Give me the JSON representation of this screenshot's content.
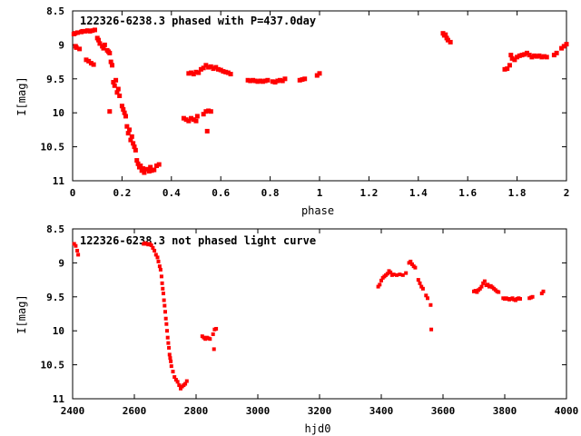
{
  "chart_data": [
    {
      "type": "scatter",
      "title": "122326-6238.3 phased with P=437.0day",
      "xlabel": "phase",
      "ylabel": "I[mag]",
      "xlim": [
        0,
        2
      ],
      "ylim": [
        11,
        8.5
      ],
      "y_inverted": true,
      "grid": false,
      "legend": "none",
      "marker_color": "#ff0000",
      "xticks": [
        "0",
        "0.2",
        "0.4",
        "0.6",
        "0.8",
        "1",
        "1.2",
        "1.4",
        "1.6",
        "1.8",
        "2"
      ],
      "yticks": [
        "8.5",
        "9",
        "9.5",
        "10",
        "10.5",
        "11"
      ],
      "points": [
        [
          0.005,
          8.84
        ],
        [
          0.01,
          8.83
        ],
        [
          0.012,
          9.02
        ],
        [
          0.015,
          9.04
        ],
        [
          0.02,
          8.82
        ],
        [
          0.028,
          9.06
        ],
        [
          0.035,
          8.81
        ],
        [
          0.04,
          8.8
        ],
        [
          0.05,
          8.8
        ],
        [
          0.055,
          9.22
        ],
        [
          0.06,
          8.79
        ],
        [
          0.065,
          9.24
        ],
        [
          0.07,
          8.8
        ],
        [
          0.075,
          9.27
        ],
        [
          0.08,
          8.79
        ],
        [
          0.085,
          9.29
        ],
        [
          0.09,
          8.78
        ],
        [
          0.1,
          8.9
        ],
        [
          0.105,
          8.93
        ],
        [
          0.11,
          8.98
        ],
        [
          0.12,
          9.02
        ],
        [
          0.125,
          9.05
        ],
        [
          0.13,
          9.0
        ],
        [
          0.14,
          9.08
        ],
        [
          0.145,
          9.1
        ],
        [
          0.15,
          9.12
        ],
        [
          0.155,
          9.25
        ],
        [
          0.16,
          9.3
        ],
        [
          0.15,
          9.98
        ],
        [
          0.165,
          9.55
        ],
        [
          0.17,
          9.6
        ],
        [
          0.175,
          9.52
        ],
        [
          0.18,
          9.7
        ],
        [
          0.185,
          9.65
        ],
        [
          0.19,
          9.75
        ],
        [
          0.2,
          9.9
        ],
        [
          0.205,
          9.95
        ],
        [
          0.21,
          10.0
        ],
        [
          0.215,
          10.05
        ],
        [
          0.22,
          10.2
        ],
        [
          0.225,
          10.3
        ],
        [
          0.23,
          10.25
        ],
        [
          0.235,
          10.4
        ],
        [
          0.24,
          10.35
        ],
        [
          0.245,
          10.45
        ],
        [
          0.25,
          10.5
        ],
        [
          0.255,
          10.55
        ],
        [
          0.26,
          10.7
        ],
        [
          0.265,
          10.75
        ],
        [
          0.27,
          10.8
        ],
        [
          0.275,
          10.78
        ],
        [
          0.28,
          10.85
        ],
        [
          0.285,
          10.82
        ],
        [
          0.29,
          10.88
        ],
        [
          0.3,
          10.83
        ],
        [
          0.31,
          10.86
        ],
        [
          0.315,
          10.8
        ],
        [
          0.32,
          10.85
        ],
        [
          0.33,
          10.84
        ],
        [
          0.34,
          10.78
        ],
        [
          0.35,
          10.76
        ],
        [
          0.45,
          10.08
        ],
        [
          0.46,
          10.1
        ],
        [
          0.47,
          10.12
        ],
        [
          0.48,
          10.08
        ],
        [
          0.49,
          10.1
        ],
        [
          0.5,
          10.12
        ],
        [
          0.505,
          10.05
        ],
        [
          0.53,
          10.02
        ],
        [
          0.54,
          9.98
        ],
        [
          0.55,
          9.97
        ],
        [
          0.56,
          9.98
        ],
        [
          0.545,
          10.27
        ],
        [
          0.47,
          9.42
        ],
        [
          0.48,
          9.41
        ],
        [
          0.49,
          9.43
        ],
        [
          0.5,
          9.4
        ],
        [
          0.51,
          9.41
        ],
        [
          0.52,
          9.36
        ],
        [
          0.53,
          9.34
        ],
        [
          0.54,
          9.3
        ],
        [
          0.55,
          9.33
        ],
        [
          0.56,
          9.32
        ],
        [
          0.57,
          9.35
        ],
        [
          0.58,
          9.33
        ],
        [
          0.59,
          9.36
        ],
        [
          0.6,
          9.37
        ],
        [
          0.61,
          9.39
        ],
        [
          0.62,
          9.4
        ],
        [
          0.63,
          9.41
        ],
        [
          0.64,
          9.43
        ],
        [
          0.71,
          9.52
        ],
        [
          0.72,
          9.53
        ],
        [
          0.73,
          9.52
        ],
        [
          0.74,
          9.53
        ],
        [
          0.75,
          9.54
        ],
        [
          0.76,
          9.53
        ],
        [
          0.77,
          9.54
        ],
        [
          0.78,
          9.53
        ],
        [
          0.79,
          9.52
        ],
        [
          0.81,
          9.54
        ],
        [
          0.82,
          9.55
        ],
        [
          0.83,
          9.53
        ],
        [
          0.84,
          9.52
        ],
        [
          0.85,
          9.53
        ],
        [
          0.86,
          9.5
        ],
        [
          0.92,
          9.52
        ],
        [
          0.93,
          9.51
        ],
        [
          0.94,
          9.5
        ],
        [
          0.99,
          9.45
        ],
        [
          1.0,
          9.42
        ],
        [
          1.5,
          8.83
        ],
        [
          1.505,
          8.86
        ],
        [
          1.51,
          8.85
        ],
        [
          1.515,
          8.9
        ],
        [
          1.52,
          8.93
        ],
        [
          1.53,
          8.96
        ],
        [
          1.75,
          9.36
        ],
        [
          1.76,
          9.35
        ],
        [
          1.77,
          9.3
        ],
        [
          1.775,
          9.15
        ],
        [
          1.78,
          9.2
        ],
        [
          1.79,
          9.22
        ],
        [
          1.8,
          9.18
        ],
        [
          1.81,
          9.16
        ],
        [
          1.82,
          9.15
        ],
        [
          1.83,
          9.14
        ],
        [
          1.84,
          9.12
        ],
        [
          1.85,
          9.15
        ],
        [
          1.86,
          9.18
        ],
        [
          1.87,
          9.16
        ],
        [
          1.88,
          9.17
        ],
        [
          1.89,
          9.16
        ],
        [
          1.9,
          9.18
        ],
        [
          1.91,
          9.17
        ],
        [
          1.92,
          9.18
        ],
        [
          1.95,
          9.15
        ],
        [
          1.96,
          9.12
        ],
        [
          1.98,
          9.05
        ],
        [
          1.99,
          9.02
        ],
        [
          2.0,
          8.99
        ]
      ]
    },
    {
      "type": "scatter",
      "title": "122326-6238.3 not phased light curve",
      "xlabel": "hjd0",
      "ylabel": "I[mag]",
      "xlim": [
        2400,
        4000
      ],
      "ylim": [
        11,
        8.5
      ],
      "y_inverted": true,
      "grid": false,
      "legend": "none",
      "marker_color": "#ff0000",
      "xticks": [
        "2400",
        "2600",
        "2800",
        "3000",
        "3200",
        "3400",
        "3600",
        "3800",
        "4000"
      ],
      "yticks": [
        "8.5",
        "9",
        "9.5",
        "10",
        "10.5",
        "11"
      ],
      "points": [
        [
          2405,
          8.72
        ],
        [
          2410,
          8.75
        ],
        [
          2415,
          8.82
        ],
        [
          2418,
          8.88
        ],
        [
          2630,
          8.72
        ],
        [
          2635,
          8.71
        ],
        [
          2640,
          8.72
        ],
        [
          2645,
          8.73
        ],
        [
          2650,
          8.72
        ],
        [
          2655,
          8.74
        ],
        [
          2660,
          8.78
        ],
        [
          2665,
          8.82
        ],
        [
          2670,
          8.88
        ],
        [
          2675,
          8.92
        ],
        [
          2678,
          8.98
        ],
        [
          2682,
          9.05
        ],
        [
          2685,
          9.1
        ],
        [
          2688,
          9.2
        ],
        [
          2690,
          9.3
        ],
        [
          2692,
          9.38
        ],
        [
          2694,
          9.45
        ],
        [
          2696,
          9.55
        ],
        [
          2698,
          9.63
        ],
        [
          2700,
          9.72
        ],
        [
          2702,
          9.82
        ],
        [
          2704,
          9.9
        ],
        [
          2706,
          10.0
        ],
        [
          2708,
          10.1
        ],
        [
          2710,
          10.18
        ],
        [
          2712,
          10.25
        ],
        [
          2714,
          10.35
        ],
        [
          2716,
          10.4
        ],
        [
          2718,
          10.45
        ],
        [
          2720,
          10.52
        ],
        [
          2725,
          10.6
        ],
        [
          2730,
          10.68
        ],
        [
          2735,
          10.72
        ],
        [
          2740,
          10.75
        ],
        [
          2745,
          10.8
        ],
        [
          2750,
          10.85
        ],
        [
          2755,
          10.82
        ],
        [
          2760,
          10.8
        ],
        [
          2765,
          10.78
        ],
        [
          2770,
          10.74
        ],
        [
          2820,
          10.08
        ],
        [
          2825,
          10.1
        ],
        [
          2830,
          10.12
        ],
        [
          2835,
          10.1
        ],
        [
          2840,
          10.11
        ],
        [
          2845,
          10.12
        ],
        [
          2855,
          10.05
        ],
        [
          2860,
          9.98
        ],
        [
          2865,
          9.97
        ],
        [
          2858,
          10.27
        ],
        [
          3390,
          9.35
        ],
        [
          3395,
          9.32
        ],
        [
          3400,
          9.26
        ],
        [
          3405,
          9.22
        ],
        [
          3410,
          9.2
        ],
        [
          3415,
          9.18
        ],
        [
          3420,
          9.16
        ],
        [
          3425,
          9.12
        ],
        [
          3430,
          9.14
        ],
        [
          3435,
          9.18
        ],
        [
          3440,
          9.17
        ],
        [
          3450,
          9.18
        ],
        [
          3460,
          9.17
        ],
        [
          3470,
          9.18
        ],
        [
          3480,
          9.15
        ],
        [
          3490,
          9.0
        ],
        [
          3495,
          8.98
        ],
        [
          3500,
          9.02
        ],
        [
          3505,
          9.05
        ],
        [
          3510,
          9.07
        ],
        [
          3520,
          9.25
        ],
        [
          3525,
          9.3
        ],
        [
          3530,
          9.35
        ],
        [
          3535,
          9.38
        ],
        [
          3545,
          9.48
        ],
        [
          3550,
          9.52
        ],
        [
          3560,
          9.62
        ],
        [
          3562,
          9.98
        ],
        [
          3700,
          9.42
        ],
        [
          3705,
          9.41
        ],
        [
          3710,
          9.43
        ],
        [
          3715,
          9.4
        ],
        [
          3720,
          9.38
        ],
        [
          3725,
          9.35
        ],
        [
          3730,
          9.3
        ],
        [
          3735,
          9.27
        ],
        [
          3740,
          9.33
        ],
        [
          3745,
          9.32
        ],
        [
          3750,
          9.35
        ],
        [
          3755,
          9.34
        ],
        [
          3760,
          9.36
        ],
        [
          3765,
          9.38
        ],
        [
          3770,
          9.4
        ],
        [
          3775,
          9.42
        ],
        [
          3780,
          9.43
        ],
        [
          3795,
          9.52
        ],
        [
          3800,
          9.53
        ],
        [
          3805,
          9.52
        ],
        [
          3810,
          9.53
        ],
        [
          3815,
          9.54
        ],
        [
          3820,
          9.53
        ],
        [
          3825,
          9.52
        ],
        [
          3830,
          9.54
        ],
        [
          3835,
          9.55
        ],
        [
          3840,
          9.53
        ],
        [
          3845,
          9.52
        ],
        [
          3850,
          9.53
        ],
        [
          3880,
          9.52
        ],
        [
          3885,
          9.51
        ],
        [
          3890,
          9.5
        ],
        [
          3920,
          9.45
        ],
        [
          3925,
          9.42
        ]
      ]
    }
  ]
}
